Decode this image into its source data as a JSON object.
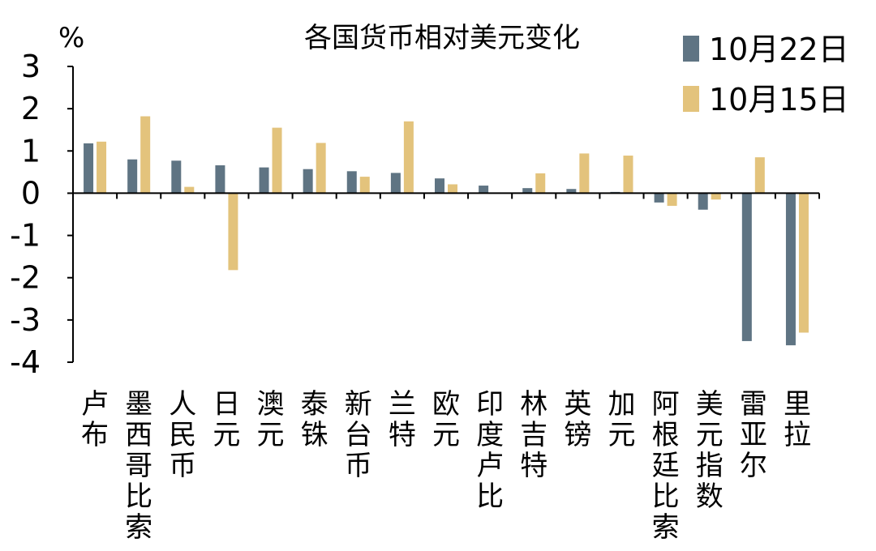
{
  "chart_data": {
    "type": "bar",
    "title": "各国货币相对美元变化",
    "ylabel": "%",
    "xlabel": "",
    "ylim": [
      -4,
      3
    ],
    "yticks": [
      3,
      2,
      1,
      0,
      -1,
      -2,
      -3,
      -4
    ],
    "grid": false,
    "legend_position": "top-right",
    "categories": [
      "卢布",
      "墨西哥比索",
      "人民币",
      "日元",
      "澳元",
      "泰铢",
      "新台币",
      "兰特",
      "欧元",
      "印度卢比",
      "林吉特",
      "英镑",
      "加元",
      "阿根廷比索",
      "美元指数",
      "雷亚尔",
      "里拉"
    ],
    "series": [
      {
        "name": "10月22日",
        "color": "#5f7483",
        "values": [
          1.18,
          0.8,
          0.77,
          0.66,
          0.61,
          0.57,
          0.52,
          0.48,
          0.35,
          0.18,
          0.12,
          0.1,
          0.03,
          -0.22,
          -0.39,
          -3.5,
          -3.6
        ]
      },
      {
        "name": "10月15日",
        "color": "#e3c37c",
        "values": [
          1.22,
          1.82,
          0.15,
          -1.82,
          1.55,
          1.19,
          0.39,
          1.7,
          0.21,
          0.0,
          0.47,
          0.94,
          0.89,
          -0.3,
          -0.15,
          0.85,
          -3.3
        ]
      }
    ]
  }
}
